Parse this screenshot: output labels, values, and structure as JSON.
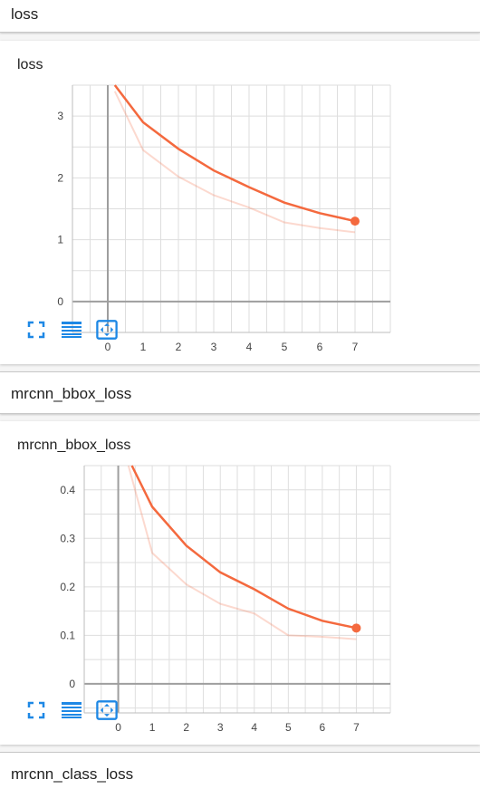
{
  "sections": {
    "loss": {
      "header": "loss"
    },
    "bbox": {
      "header": "mrcnn_bbox_loss"
    },
    "class": {
      "header": "mrcnn_class_loss"
    }
  },
  "accent_color": "#f4693e",
  "icon_color": "#1e88e5",
  "tool_icons": [
    "fit-domain-icon",
    "toggle-log-scale-icon",
    "expand-chart-icon"
  ],
  "chart_data": [
    {
      "type": "line",
      "title": "loss",
      "xlabel": "",
      "ylabel": "",
      "x_ticks": [
        "0",
        "1",
        "2",
        "3",
        "4",
        "5",
        "6",
        "7"
      ],
      "y_ticks": [
        "0",
        "1",
        "2",
        "3"
      ],
      "xlim": [
        -1,
        8
      ],
      "ylim": [
        -0.5,
        3.5
      ],
      "grid": true,
      "series": [
        {
          "role": "smoothed",
          "x": [
            0.2,
            1,
            2,
            3,
            4,
            5,
            6,
            7
          ],
          "values": [
            3.5,
            2.9,
            2.47,
            2.12,
            1.85,
            1.6,
            1.43,
            1.3
          ]
        },
        {
          "role": "raw",
          "x": [
            0.2,
            1,
            2,
            3,
            4,
            5,
            6,
            7
          ],
          "values": [
            3.4,
            2.45,
            2.02,
            1.72,
            1.52,
            1.28,
            1.19,
            1.12
          ]
        }
      ]
    },
    {
      "type": "line",
      "title": "mrcnn_bbox_loss",
      "xlabel": "",
      "ylabel": "",
      "x_ticks": [
        "0",
        "1",
        "2",
        "3",
        "4",
        "5",
        "6",
        "7"
      ],
      "y_ticks": [
        "0",
        "0.1",
        "0.2",
        "0.3",
        "0.4"
      ],
      "xlim": [
        -1,
        8
      ],
      "ylim": [
        -0.06,
        0.45
      ],
      "grid": true,
      "series": [
        {
          "role": "smoothed",
          "x": [
            0.4,
            1,
            2,
            3,
            4,
            5,
            6,
            7
          ],
          "values": [
            0.46,
            0.365,
            0.285,
            0.23,
            0.195,
            0.155,
            0.13,
            0.115
          ]
        },
        {
          "role": "raw",
          "x": [
            0.3,
            1,
            2,
            3,
            4,
            5,
            6,
            7
          ],
          "values": [
            0.46,
            0.27,
            0.205,
            0.165,
            0.145,
            0.1,
            0.097,
            0.092
          ]
        }
      ]
    }
  ]
}
